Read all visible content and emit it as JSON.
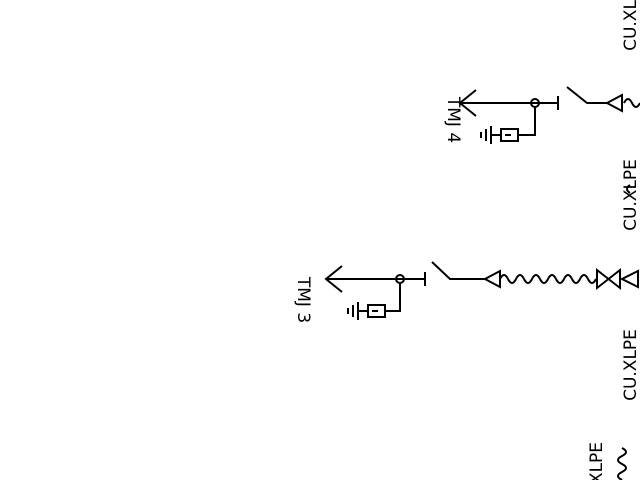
{
  "labels": {
    "feeder_3": "TMJ 3",
    "feeder_4": "TMJ 4",
    "cable_1": "CU.XLPE",
    "cable_2": "CU.XLPE",
    "cable_3": "CU.XLPE",
    "cable_4": "XLPE"
  }
}
